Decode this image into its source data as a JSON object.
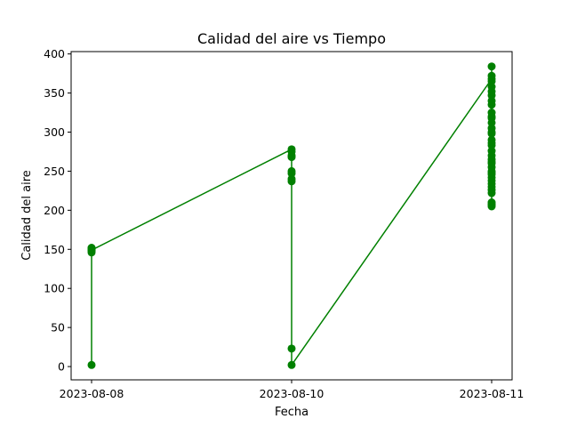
{
  "chart_data": {
    "type": "line",
    "title": "Calidad del aire vs Tiempo",
    "xlabel": "Fecha",
    "ylabel": "Calidad del aire",
    "categories": [
      "2023-08-08",
      "2023-08-10",
      "2023-08-11"
    ],
    "ylim": [
      -17,
      403
    ],
    "yticks": [
      0,
      50,
      100,
      150,
      200,
      250,
      300,
      350,
      400
    ],
    "grid": false,
    "color": "#008000",
    "markers": "circle",
    "series": [
      {
        "x": [
          "2023-08-08",
          "2023-08-08",
          "2023-08-08",
          "2023-08-08",
          "2023-08-08",
          "2023-08-08",
          "2023-08-08",
          "2023-08-10",
          "2023-08-10",
          "2023-08-10",
          "2023-08-10",
          "2023-08-10",
          "2023-08-10",
          "2023-08-10",
          "2023-08-10",
          "2023-08-10",
          "2023-08-10",
          "2023-08-11",
          "2023-08-11",
          "2023-08-11",
          "2023-08-11",
          "2023-08-11",
          "2023-08-11",
          "2023-08-11",
          "2023-08-11",
          "2023-08-11",
          "2023-08-11",
          "2023-08-11",
          "2023-08-11",
          "2023-08-11",
          "2023-08-11",
          "2023-08-11",
          "2023-08-11",
          "2023-08-11",
          "2023-08-11",
          "2023-08-11",
          "2023-08-11",
          "2023-08-11",
          "2023-08-11",
          "2023-08-11",
          "2023-08-11",
          "2023-08-11",
          "2023-08-11",
          "2023-08-11",
          "2023-08-11",
          "2023-08-11",
          "2023-08-11",
          "2023-08-11",
          "2023-08-11",
          "2023-08-11",
          "2023-08-11",
          "2023-08-11",
          "2023-08-11",
          "2023-08-11",
          "2023-08-11"
        ],
        "y": [
          150,
          148,
          152,
          2,
          146,
          151,
          149,
          278,
          275,
          270,
          268,
          250,
          247,
          240,
          237,
          23,
          2,
          368,
          384,
          372,
          365,
          358,
          352,
          347,
          340,
          335,
          325,
          318,
          312,
          305,
          298,
          290,
          283,
          276,
          270,
          265,
          260,
          255,
          250,
          246,
          242,
          238,
          234,
          230,
          226,
          222,
          210,
          207,
          205,
          208,
          248,
          262,
          286,
          300,
          320
        ]
      }
    ]
  }
}
